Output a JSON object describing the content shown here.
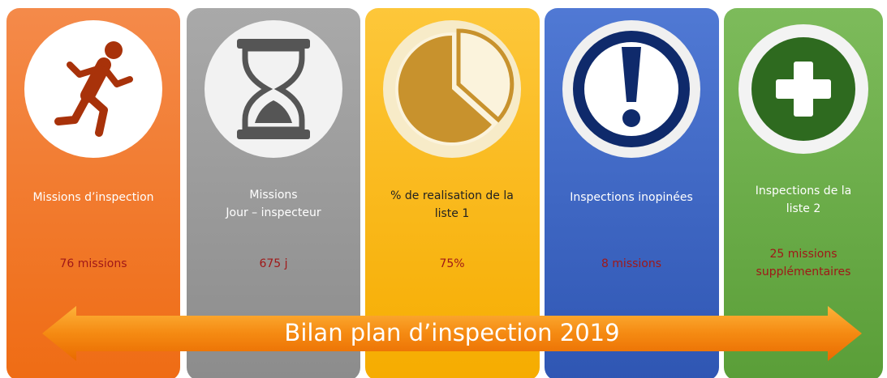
{
  "title": "Bilan plan d’inspection 2019",
  "cards": [
    {
      "label": [
        "Missions d’inspection"
      ],
      "value": [
        "76 missions"
      ]
    },
    {
      "label": [
        "Missions",
        "Jour – inspecteur"
      ],
      "value": [
        "675 j"
      ]
    },
    {
      "label": [
        "% de realisation de la",
        "liste 1"
      ],
      "value": [
        "75%"
      ]
    },
    {
      "label": [
        "Inspections inopinées"
      ],
      "value": [
        "8 missions"
      ]
    },
    {
      "label": [
        "Inspections de la",
        "liste 2"
      ],
      "value": [
        "25 missions",
        "supplémentaires"
      ]
    }
  ]
}
